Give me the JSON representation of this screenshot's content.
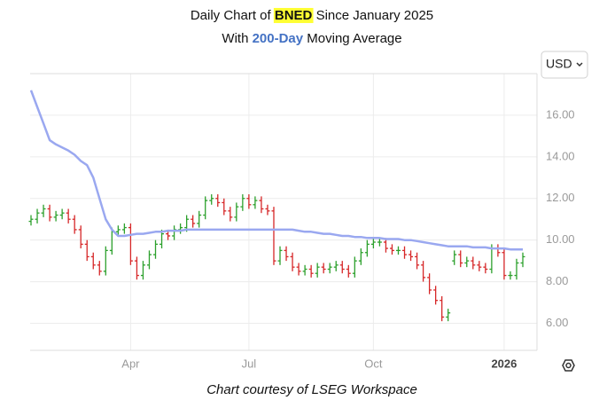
{
  "header": {
    "title_prefix": "Daily Chart of",
    "ticker": "BNED",
    "title_suffix": "Since January 2025",
    "subtitle_prefix": "With",
    "subtitle_highlight": "200-Day",
    "subtitle_suffix": "Moving Average"
  },
  "currency_button": "USD",
  "footer": "Chart courtesy of LSEG Workspace",
  "chart_data": {
    "type": "ohlc",
    "categories": [
      null,
      null,
      null,
      null,
      null,
      null,
      null,
      null,
      null,
      null,
      null,
      null,
      null,
      null,
      null,
      null,
      "Apr",
      null,
      null,
      null,
      null,
      null,
      null,
      null,
      null,
      null,
      null,
      null,
      null,
      null,
      null,
      null,
      null,
      null,
      null,
      "Jul",
      null,
      null,
      null,
      null,
      null,
      null,
      null,
      null,
      null,
      null,
      null,
      null,
      null,
      null,
      null,
      null,
      null,
      null,
      null,
      "Oct",
      null,
      null,
      null,
      null,
      null,
      null,
      null,
      null,
      null,
      null,
      null,
      null,
      null,
      null,
      null,
      null,
      null,
      null,
      null,
      null,
      "2026",
      null,
      null,
      null
    ],
    "open": [
      10.9,
      11.0,
      11.3,
      11.5,
      11.1,
      11.2,
      11.3,
      11.0,
      10.5,
      9.8,
      9.2,
      8.8,
      8.5,
      9.5,
      10.4,
      10.5,
      10.6,
      9.0,
      8.3,
      8.8,
      9.3,
      9.8,
      10.3,
      10.2,
      10.5,
      10.6,
      11.0,
      10.8,
      11.2,
      11.9,
      12.0,
      11.8,
      11.4,
      11.1,
      11.6,
      12.0,
      11.7,
      11.9,
      11.5,
      11.4,
      9.0,
      9.5,
      9.2,
      8.7,
      8.5,
      8.6,
      8.4,
      8.7,
      8.6,
      8.7,
      8.8,
      8.6,
      8.4,
      9.0,
      9.4,
      9.8,
      9.9,
      9.9,
      9.6,
      9.5,
      9.5,
      9.3,
      9.2,
      8.8,
      8.2,
      7.6,
      7.1,
      6.3,
      9.0,
      9.3,
      8.9,
      9.0,
      8.8,
      8.7,
      8.6,
      9.6,
      9.4,
      8.3,
      8.3,
      8.9
    ],
    "high": [
      11.2,
      11.5,
      11.7,
      11.7,
      11.4,
      11.5,
      11.5,
      11.2,
      10.7,
      10.0,
      9.4,
      9.0,
      9.7,
      10.6,
      10.7,
      10.8,
      10.8,
      9.2,
      9.0,
      9.5,
      10.0,
      10.5,
      10.5,
      10.7,
      10.8,
      11.2,
      11.2,
      11.4,
      12.1,
      12.2,
      12.2,
      12.0,
      11.6,
      11.8,
      12.2,
      12.2,
      12.1,
      12.1,
      11.7,
      11.6,
      9.7,
      9.7,
      9.4,
      8.9,
      8.8,
      8.8,
      8.9,
      8.9,
      8.9,
      9.0,
      9.0,
      8.8,
      9.2,
      9.6,
      10.0,
      10.1,
      10.1,
      10.1,
      9.8,
      9.7,
      9.7,
      9.5,
      9.4,
      9.0,
      8.4,
      7.8,
      7.3,
      6.7,
      9.5,
      9.5,
      9.2,
      9.2,
      9.0,
      8.9,
      9.8,
      9.8,
      9.6,
      8.5,
      9.1,
      9.4
    ],
    "low": [
      10.7,
      10.8,
      11.1,
      10.9,
      10.9,
      11.0,
      10.8,
      10.3,
      9.6,
      9.0,
      8.6,
      8.3,
      8.3,
      9.3,
      10.2,
      10.3,
      8.8,
      8.1,
      8.1,
      8.6,
      9.1,
      9.6,
      10.0,
      10.0,
      10.3,
      10.4,
      10.6,
      10.6,
      11.0,
      11.7,
      11.6,
      11.2,
      10.9,
      10.9,
      11.4,
      11.5,
      11.5,
      11.3,
      11.2,
      8.8,
      8.8,
      9.0,
      8.5,
      8.3,
      8.3,
      8.2,
      8.2,
      8.4,
      8.4,
      8.5,
      8.4,
      8.2,
      8.2,
      8.8,
      9.2,
      9.6,
      9.7,
      9.4,
      9.3,
      9.3,
      9.1,
      9.0,
      8.6,
      8.0,
      7.4,
      6.9,
      6.1,
      6.1,
      8.8,
      8.7,
      8.7,
      8.6,
      8.5,
      8.4,
      8.4,
      9.2,
      8.1,
      8.1,
      8.1,
      8.7
    ],
    "close": [
      11.0,
      11.3,
      11.5,
      11.1,
      11.2,
      11.3,
      11.0,
      10.5,
      9.8,
      9.2,
      8.8,
      8.5,
      9.5,
      10.4,
      10.5,
      10.6,
      9.0,
      8.3,
      8.8,
      9.3,
      9.8,
      10.3,
      10.2,
      10.5,
      10.6,
      11.0,
      10.8,
      11.2,
      11.9,
      12.0,
      11.8,
      11.4,
      11.1,
      11.6,
      12.0,
      11.7,
      11.9,
      11.5,
      11.4,
      9.0,
      9.5,
      9.2,
      8.7,
      8.5,
      8.6,
      8.4,
      8.7,
      8.6,
      8.7,
      8.8,
      8.6,
      8.4,
      9.0,
      9.4,
      9.8,
      9.9,
      9.9,
      9.6,
      9.5,
      9.5,
      9.3,
      9.2,
      8.8,
      8.2,
      7.6,
      7.1,
      6.3,
      6.5,
      9.3,
      8.9,
      9.0,
      8.8,
      8.7,
      8.6,
      9.6,
      9.4,
      8.3,
      8.3,
      8.9,
      9.2
    ],
    "up_color": "#2ca02c",
    "down_color": "#d62728",
    "moving_average": {
      "color": "#9aa8f0",
      "values": [
        17.2,
        16.4,
        15.6,
        14.8,
        14.6,
        14.45,
        14.3,
        14.1,
        13.8,
        13.6,
        13.0,
        12.0,
        11.0,
        10.5,
        10.2,
        10.2,
        10.25,
        10.3,
        10.3,
        10.35,
        10.4,
        10.4,
        10.45,
        10.45,
        10.45,
        10.5,
        10.5,
        10.5,
        10.5,
        10.5,
        10.5,
        10.5,
        10.5,
        10.5,
        10.5,
        10.5,
        10.5,
        10.5,
        10.5,
        10.5,
        10.5,
        10.5,
        10.5,
        10.45,
        10.4,
        10.4,
        10.35,
        10.3,
        10.3,
        10.25,
        10.2,
        10.2,
        10.15,
        10.15,
        10.1,
        10.1,
        10.1,
        10.05,
        10.05,
        10.05,
        10.0,
        10.0,
        9.95,
        9.9,
        9.85,
        9.8,
        9.75,
        9.7,
        9.7,
        9.7,
        9.7,
        9.65,
        9.65,
        9.65,
        9.6,
        9.6,
        9.6,
        9.55,
        9.55,
        9.55
      ]
    },
    "ylim": [
      4.7,
      18.0
    ],
    "yticks": [
      {
        "value": 6,
        "label": "6.00"
      },
      {
        "value": 8,
        "label": "8.00"
      },
      {
        "value": 10,
        "label": "10.00"
      },
      {
        "value": 12,
        "label": "12.00"
      },
      {
        "value": 14,
        "label": "14.00"
      },
      {
        "value": 16,
        "label": "16.00"
      }
    ],
    "grid": true
  }
}
